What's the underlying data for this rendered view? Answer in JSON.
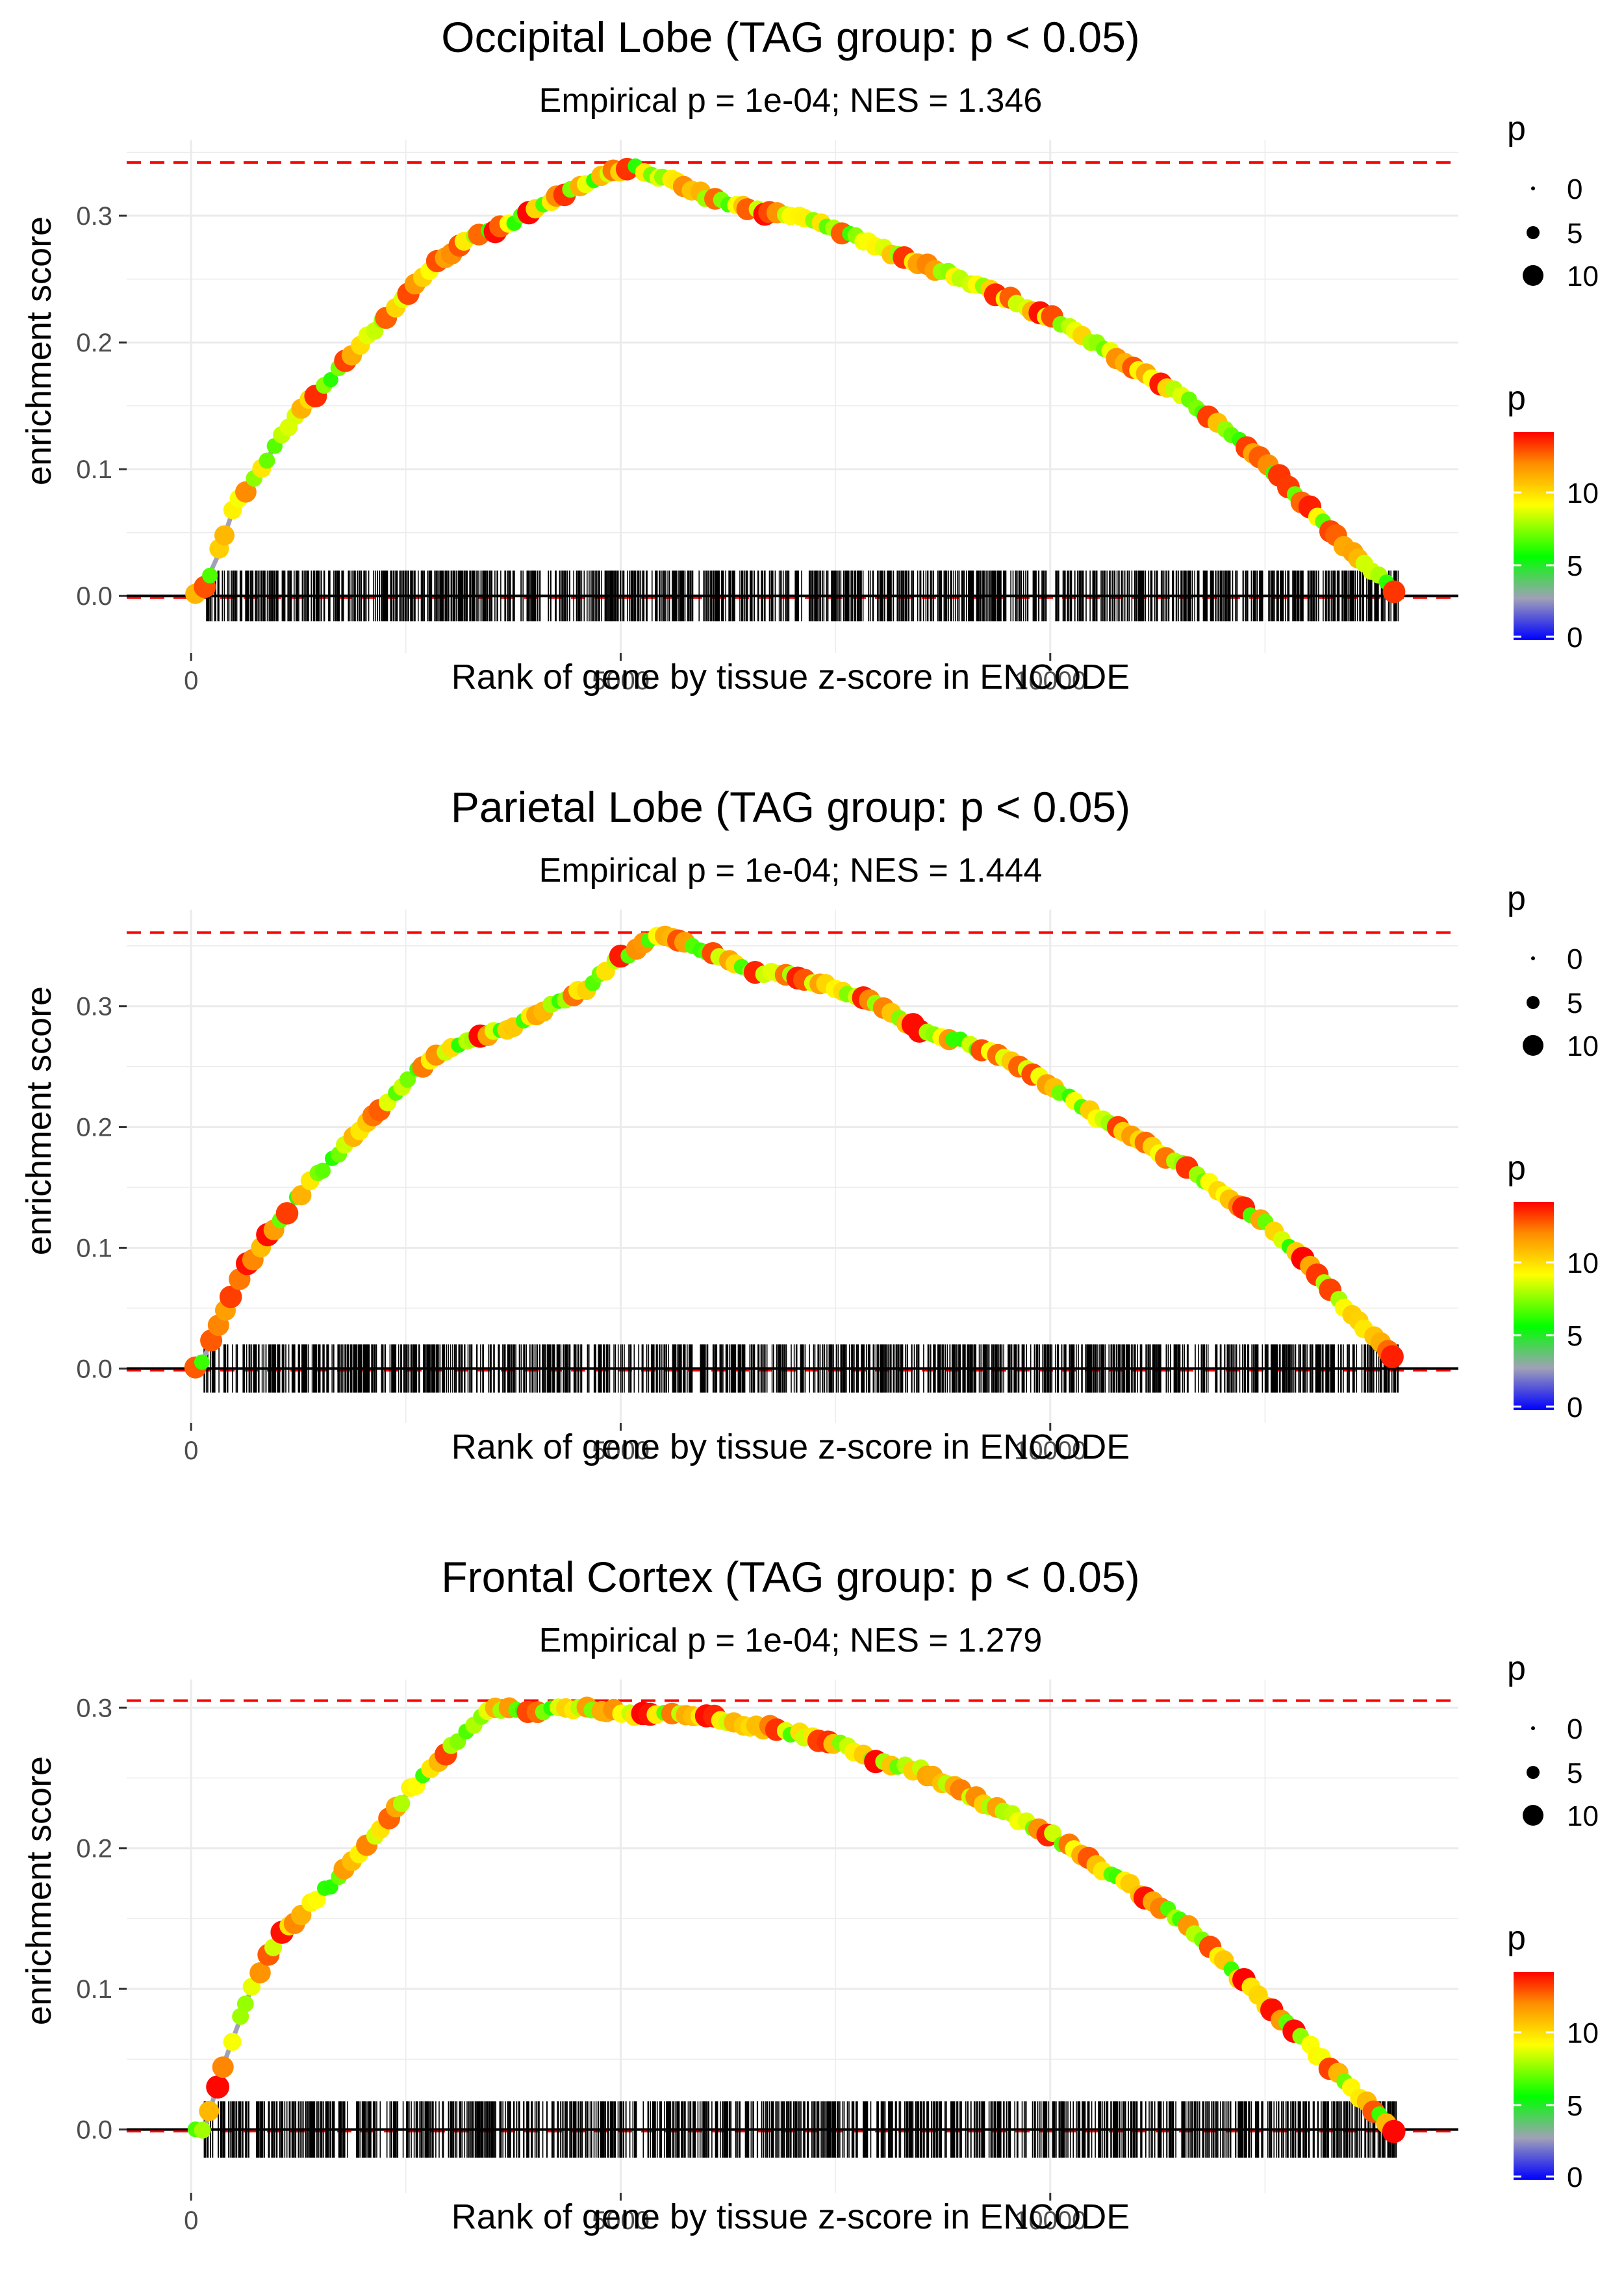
{
  "colors": {
    "curve": "#a0a0b8",
    "max_line": "#ff0000",
    "grid": "#ebebeb",
    "rug": "#000000",
    "gradient": [
      "#0000ff",
      "#a0a0b8",
      "#00ff00",
      "#ffff00",
      "#ff8c00",
      "#ff0000"
    ]
  },
  "chart_data": [
    {
      "type": "line",
      "title": "Occipital Lobe (TAG group: p < 0.05)",
      "subtitle": "Empirical p = 1e-04; NES = 1.346",
      "xlabel": "Rank of gene by tissue z-score in ENCODE",
      "ylabel": "enrichment score",
      "xlim": [
        -750,
        14750
      ],
      "ylim": [
        -0.045,
        0.36
      ],
      "x_ticks": [
        0,
        5000,
        10000
      ],
      "x_tick_labels": [
        "0",
        "5000",
        "10000"
      ],
      "y_ticks": [
        0.0,
        0.1,
        0.2,
        0.3
      ],
      "y_tick_labels": [
        "0.0",
        "0.1",
        "0.2",
        "0.3"
      ],
      "max_es": 0.342,
      "peak_rank": 5150,
      "n_rank": 14050,
      "x": [
        0,
        100,
        300,
        500,
        800,
        1200,
        1600,
        2000,
        2400,
        2800,
        3200,
        3600,
        4000,
        4400,
        4800,
        5150,
        5500,
        6000,
        6500,
        7000,
        7500,
        8000,
        8500,
        9000,
        9500,
        10000,
        10500,
        11000,
        11500,
        12000,
        12500,
        13000,
        13500,
        14000
      ],
      "values": [
        0.0,
        0.0,
        0.03,
        0.07,
        0.1,
        0.14,
        0.17,
        0.2,
        0.23,
        0.26,
        0.28,
        0.29,
        0.305,
        0.32,
        0.332,
        0.338,
        0.33,
        0.315,
        0.305,
        0.3,
        0.29,
        0.275,
        0.262,
        0.25,
        0.235,
        0.22,
        0.2,
        0.18,
        0.16,
        0.135,
        0.105,
        0.07,
        0.035,
        0.005
      ],
      "legend_size": {
        "title": "p",
        "labels": [
          "0",
          "5",
          "10"
        ]
      },
      "legend_color": {
        "title": "p",
        "labels": [
          "10",
          "5",
          "0"
        ]
      }
    },
    {
      "type": "line",
      "title": "Parietal Lobe (TAG group: p < 0.05)",
      "subtitle": "Empirical p = 1e-04; NES = 1.444",
      "xlabel": "Rank of gene by tissue z-score in ENCODE",
      "ylabel": "enrichment score",
      "xlim": [
        -750,
        14750
      ],
      "ylim": [
        -0.045,
        0.38
      ],
      "x_ticks": [
        0,
        5000,
        10000
      ],
      "x_tick_labels": [
        "0",
        "5000",
        "10000"
      ],
      "y_ticks": [
        0.0,
        0.1,
        0.2,
        0.3
      ],
      "y_tick_labels": [
        "0.0",
        "0.1",
        "0.2",
        "0.3"
      ],
      "max_es": 0.361,
      "peak_rank": 5500,
      "n_rank": 14050,
      "x": [
        0,
        100,
        300,
        600,
        1000,
        1400,
        1800,
        2200,
        2600,
        3000,
        3400,
        3800,
        4200,
        4600,
        5000,
        5500,
        6000,
        6500,
        7000,
        7500,
        8000,
        8500,
        9000,
        9500,
        10000,
        10500,
        11000,
        11500,
        12000,
        12500,
        13000,
        13500,
        14000
      ],
      "values": [
        0.0,
        0.0,
        0.035,
        0.08,
        0.12,
        0.155,
        0.185,
        0.215,
        0.245,
        0.265,
        0.275,
        0.285,
        0.3,
        0.315,
        0.34,
        0.36,
        0.345,
        0.33,
        0.325,
        0.315,
        0.3,
        0.28,
        0.27,
        0.255,
        0.235,
        0.21,
        0.19,
        0.17,
        0.145,
        0.12,
        0.085,
        0.045,
        0.01
      ],
      "legend_size": {
        "title": "p",
        "labels": [
          "0",
          "5",
          "10"
        ]
      },
      "legend_color": {
        "title": "p",
        "labels": [
          "10",
          "5",
          "0"
        ]
      }
    },
    {
      "type": "line",
      "title": "Frontal Cortex (TAG group: p < 0.05)",
      "subtitle": "Empirical p = 1e-04; NES = 1.279",
      "xlabel": "Rank of gene by tissue z-score in ENCODE",
      "ylabel": "enrichment score",
      "xlim": [
        -750,
        14750
      ],
      "ylim": [
        -0.045,
        0.32
      ],
      "x_ticks": [
        0,
        5000,
        10000
      ],
      "x_tick_labels": [
        "0",
        "5000",
        "10000"
      ],
      "y_ticks": [
        0.0,
        0.1,
        0.2,
        0.3
      ],
      "y_tick_labels": [
        "0.0",
        "0.1",
        "0.2",
        "0.3"
      ],
      "max_es": 0.305,
      "peak_rank": 3500,
      "n_rank": 14050,
      "x": [
        0,
        150,
        400,
        700,
        1000,
        1400,
        1800,
        2200,
        2600,
        3000,
        3500,
        4000,
        4500,
        5000,
        5500,
        6000,
        6500,
        7000,
        7500,
        8000,
        8500,
        9000,
        9500,
        10000,
        10500,
        11000,
        11500,
        12000,
        12500,
        13000,
        13500,
        14000
      ],
      "values": [
        0.0,
        0.0,
        0.05,
        0.1,
        0.135,
        0.16,
        0.185,
        0.215,
        0.245,
        0.27,
        0.3,
        0.298,
        0.3,
        0.296,
        0.295,
        0.293,
        0.288,
        0.282,
        0.275,
        0.262,
        0.255,
        0.24,
        0.225,
        0.21,
        0.19,
        0.17,
        0.15,
        0.12,
        0.09,
        0.06,
        0.03,
        0.0
      ],
      "legend_size": {
        "title": "p",
        "labels": [
          "0",
          "5",
          "10"
        ]
      },
      "legend_color": {
        "title": "p",
        "labels": [
          "10",
          "5",
          "0"
        ]
      }
    }
  ]
}
